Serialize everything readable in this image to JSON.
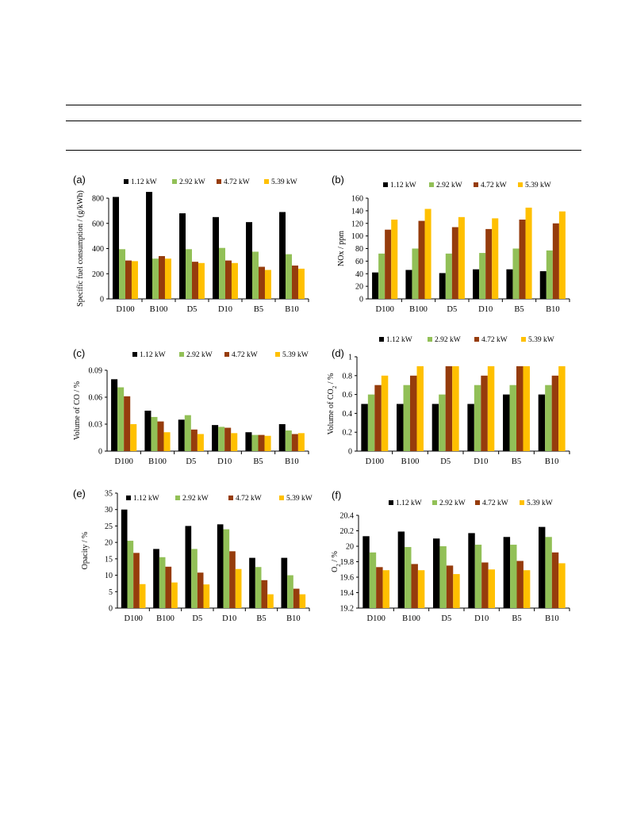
{
  "colors": {
    "s1": "#000000",
    "s2": "#92C057",
    "s3": "#963C0C",
    "s4": "#FFC000"
  },
  "chart_data": [
    {
      "id": "a",
      "panel_label": "(a)",
      "type": "bar",
      "ylabel": "Specific fuel consumption / (g/kWh)",
      "ylabel_sub": "",
      "categories": [
        "D100",
        "B100",
        "D5",
        "D10",
        "B5",
        "B10"
      ],
      "ylim": [
        0,
        800
      ],
      "yticks": [
        "0",
        "200",
        "400",
        "600",
        "800"
      ],
      "series": [
        {
          "name": "1.12 kW",
          "values": [
            810,
            850,
            680,
            650,
            610,
            690
          ]
        },
        {
          "name": "2.92 kW",
          "values": [
            395,
            320,
            395,
            405,
            375,
            355
          ]
        },
        {
          "name": "4.72 kW",
          "values": [
            305,
            340,
            295,
            305,
            255,
            265
          ]
        },
        {
          "name": "5.39 kW",
          "values": [
            300,
            320,
            285,
            285,
            230,
            240
          ]
        }
      ]
    },
    {
      "id": "b",
      "panel_label": "(b)",
      "type": "bar",
      "ylabel": "NOx / ppm",
      "ylabel_sub": "",
      "categories": [
        "D100",
        "B100",
        "D5",
        "D10",
        "B5",
        "B10"
      ],
      "ylim": [
        0,
        160
      ],
      "yticks": [
        "0",
        "20",
        "40",
        "60",
        "80",
        "100",
        "120",
        "140",
        "160"
      ],
      "series": [
        {
          "name": "1.12 kW",
          "values": [
            42,
            46,
            41,
            47,
            47,
            44
          ]
        },
        {
          "name": "2.92 kW",
          "values": [
            72,
            80,
            72,
            73,
            80,
            77
          ]
        },
        {
          "name": "4.72 kW",
          "values": [
            110,
            124,
            114,
            111,
            126,
            120
          ]
        },
        {
          "name": "5.39 kW",
          "values": [
            126,
            143,
            130,
            128,
            145,
            139
          ]
        }
      ]
    },
    {
      "id": "c",
      "panel_label": "(c)",
      "type": "bar",
      "ylabel": "Volume of CO / %",
      "ylabel_sub": "",
      "categories": [
        "D100",
        "B100",
        "D5",
        "D10",
        "B5",
        "B10"
      ],
      "ylim": [
        0,
        0.09
      ],
      "yticks": [
        "0",
        "0.03",
        "0.06",
        "0.09"
      ],
      "series": [
        {
          "name": "1.12 kW",
          "values": [
            0.08,
            0.045,
            0.035,
            0.029,
            0.021,
            0.03
          ]
        },
        {
          "name": "2.92 kW",
          "values": [
            0.071,
            0.038,
            0.04,
            0.027,
            0.018,
            0.023
          ]
        },
        {
          "name": "4.72 kW",
          "values": [
            0.061,
            0.033,
            0.024,
            0.026,
            0.018,
            0.019
          ]
        },
        {
          "name": "5.39 kW",
          "values": [
            0.03,
            0.021,
            0.019,
            0.02,
            0.017,
            0.02
          ]
        }
      ]
    },
    {
      "id": "d",
      "panel_label": "(d)",
      "type": "bar",
      "ylabel": "Volume of CO / %",
      "ylabel_sub": "2",
      "categories": [
        "D100",
        "B100",
        "D5",
        "D10",
        "B5",
        "B10"
      ],
      "ylim": [
        0,
        1
      ],
      "yticks": [
        "0",
        "0.2",
        "0.4",
        "0.6",
        "0.8",
        "1"
      ],
      "series": [
        {
          "name": "1.12 kW",
          "values": [
            0.5,
            0.5,
            0.5,
            0.5,
            0.6,
            0.6
          ]
        },
        {
          "name": "2.92 kW",
          "values": [
            0.6,
            0.7,
            0.6,
            0.7,
            0.7,
            0.7
          ]
        },
        {
          "name": "4.72 kW",
          "values": [
            0.7,
            0.8,
            0.9,
            0.8,
            0.9,
            0.8
          ]
        },
        {
          "name": "5.39 kW",
          "values": [
            0.8,
            0.9,
            0.9,
            0.9,
            0.9,
            0.9
          ]
        }
      ]
    },
    {
      "id": "e",
      "panel_label": "(e)",
      "type": "bar",
      "ylabel": "Opacity / %",
      "ylabel_sub": "",
      "categories": [
        "D100",
        "B100",
        "D5",
        "D10",
        "B5",
        "B10"
      ],
      "ylim": [
        0,
        35
      ],
      "yticks": [
        "0",
        "5",
        "10",
        "15",
        "20",
        "25",
        "30",
        "35"
      ],
      "series": [
        {
          "name": "1.12 kW",
          "values": [
            30.0,
            18.0,
            25.0,
            25.5,
            15.3,
            15.3
          ]
        },
        {
          "name": "2.92 kW",
          "values": [
            20.5,
            15.5,
            18.0,
            24.0,
            12.5,
            10.0
          ]
        },
        {
          "name": "4.72 kW",
          "values": [
            16.8,
            12.6,
            10.8,
            17.3,
            8.5,
            5.9
          ]
        },
        {
          "name": "5.39 kW",
          "values": [
            7.3,
            7.8,
            7.2,
            11.9,
            4.2,
            4.2
          ]
        }
      ]
    },
    {
      "id": "f",
      "panel_label": "(f)",
      "type": "bar",
      "ylabel": "O / %",
      "ylabel_sub": "2",
      "categories": [
        "D100",
        "B100",
        "D5",
        "D10",
        "B5",
        "B10"
      ],
      "ylim": [
        19.2,
        20.4
      ],
      "yticks": [
        "19.2",
        "19.4",
        "19.6",
        "19.8",
        "20",
        "20.2",
        "20.4"
      ],
      "series": [
        {
          "name": "1.12 kW",
          "values": [
            20.13,
            20.19,
            20.1,
            20.17,
            20.12,
            20.25
          ]
        },
        {
          "name": "2.92 kW",
          "values": [
            19.92,
            19.99,
            20.0,
            20.02,
            20.02,
            20.12
          ]
        },
        {
          "name": "4.72 kW",
          "values": [
            19.73,
            19.77,
            19.75,
            19.79,
            19.81,
            19.92
          ]
        },
        {
          "name": "5.39 kW",
          "values": [
            19.69,
            19.69,
            19.64,
            19.7,
            19.69,
            19.78
          ]
        }
      ]
    }
  ]
}
